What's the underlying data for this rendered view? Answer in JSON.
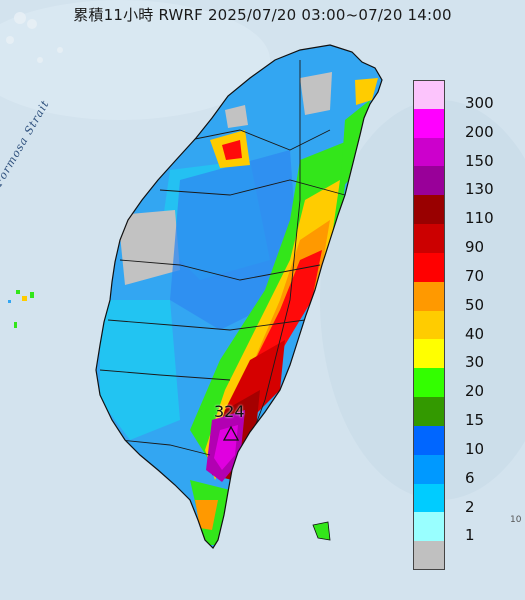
{
  "title": "累積11小時 RWRF 2025/07/20 03:00~07/20 14:00",
  "sea_label": "Formosa Strait",
  "max_station": {
    "value": "324",
    "marker": "triangle-icon"
  },
  "corner_text": "10",
  "legend": [
    {
      "label": "300",
      "color": "#fcc4fc"
    },
    {
      "label": "200",
      "color": "#ff00ff"
    },
    {
      "label": "150",
      "color": "#cc00cc"
    },
    {
      "label": "130",
      "color": "#990099"
    },
    {
      "label": "110",
      "color": "#990000"
    },
    {
      "label": "90",
      "color": "#cc0000"
    },
    {
      "label": "70",
      "color": "#ff0000"
    },
    {
      "label": "50",
      "color": "#ff9900"
    },
    {
      "label": "40",
      "color": "#ffcc00"
    },
    {
      "label": "30",
      "color": "#ffff00"
    },
    {
      "label": "20",
      "color": "#33ff00"
    },
    {
      "label": "15",
      "color": "#339900"
    },
    {
      "label": "10",
      "color": "#0066ff"
    },
    {
      "label": "6",
      "color": "#0099ff"
    },
    {
      "label": "2",
      "color": "#00ccff"
    },
    {
      "label": "1",
      "color": "#99ffff"
    },
    {
      "label": "",
      "color": "#c0c0c0"
    }
  ],
  "colors": {
    "sea": "#cfe0ec",
    "county_border": "#1a1a1a"
  }
}
